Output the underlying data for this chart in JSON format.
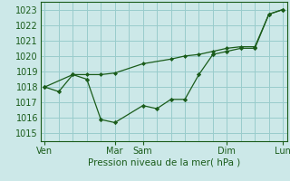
{
  "xlabel": "Pression niveau de la mer( hPa )",
  "bg_color": "#cce8e8",
  "grid_color": "#99cccc",
  "line_color": "#1a5c1a",
  "marker_color": "#1a5c1a",
  "line1_x": [
    0,
    1,
    2,
    3,
    4,
    5,
    7,
    8,
    9,
    10,
    11,
    12,
    13,
    14,
    15,
    16,
    17
  ],
  "line1_y": [
    1018.0,
    1017.7,
    1018.8,
    1018.5,
    1015.9,
    1015.7,
    1016.8,
    1016.6,
    1017.2,
    1017.2,
    1018.8,
    1020.1,
    1020.3,
    1020.5,
    1020.5,
    1022.7,
    1023.0
  ],
  "line2_x": [
    0,
    2,
    3,
    4,
    5,
    7,
    9,
    10,
    11,
    12,
    13,
    14,
    15,
    16,
    17
  ],
  "line2_y": [
    1018.0,
    1018.8,
    1018.8,
    1018.8,
    1018.9,
    1019.5,
    1019.8,
    1020.0,
    1020.1,
    1020.3,
    1020.5,
    1020.6,
    1020.6,
    1022.7,
    1023.0
  ],
  "yticks": [
    1015,
    1016,
    1017,
    1018,
    1019,
    1020,
    1021,
    1022,
    1023
  ],
  "ylim": [
    1014.5,
    1023.5
  ],
  "xlim": [
    -0.3,
    17.3
  ],
  "xtick_positions": [
    0,
    5,
    7,
    13,
    17
  ],
  "xtick_labels": [
    "Ven",
    "Mar",
    "Sam",
    "Dim",
    "Lun"
  ]
}
